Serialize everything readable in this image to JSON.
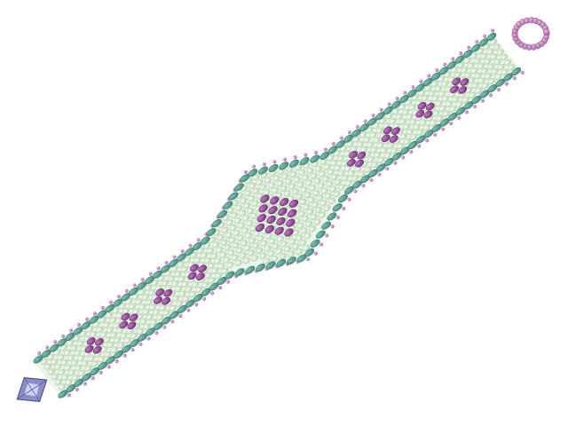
{
  "image": {
    "subject": "beaded-bracelet",
    "background": "#ffffff"
  },
  "colors": {
    "teal_bead": "#3e8a7c",
    "teal_bead_highlight": "#7cc0b2",
    "purple_bead": "#7b2f80",
    "purple_bead_highlight": "#c07ac4",
    "pale_green_bead": "#d8ecd2",
    "pale_green_shadow": "#aacba3",
    "seed_bead": "#b06aa8",
    "crystal": "#8a8ec8",
    "crystal_highlight": "#e6e8ff"
  },
  "pattern": {
    "small_diamond_motifs": 8,
    "center_diamond_grid": "4x4"
  }
}
